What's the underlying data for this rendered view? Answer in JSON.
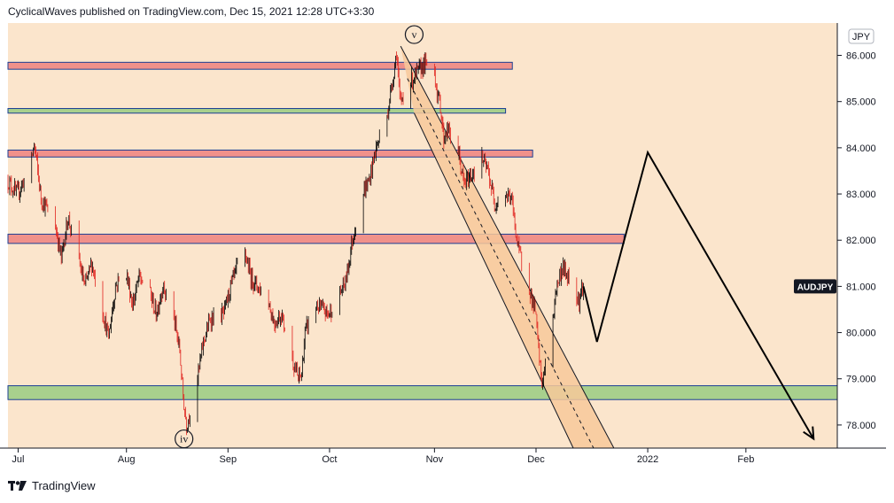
{
  "header": {
    "publisher": "CyclicalWaves",
    "publish_text": "published on TradingView.com, Dec 15, 2021 12:28 UTC+3:30"
  },
  "footer": {
    "brand": "TradingView"
  },
  "colors": {
    "background": "#fbe5cc",
    "candle_up": "#000000",
    "candle_down": "#e0231e",
    "resistance_fill": "#f0918a",
    "support_fill": "#a8d08d",
    "zone_border": "#1c3f94",
    "channel_fill": "#f7c99a",
    "projection_line": "#000000"
  },
  "chart_data": {
    "type": "candlestick",
    "symbol": "AUDJPY",
    "currency": "JPY",
    "last_price_label": "AUDJPY",
    "y_axis": {
      "min": 77.5,
      "max": 86.7,
      "ticks": [
        "78.000",
        "79.000",
        "80.000",
        "81.000",
        "82.000",
        "83.000",
        "84.000",
        "85.000",
        "86.000"
      ]
    },
    "x_axis": {
      "start": "2021-06-28",
      "end": "2022-02-28",
      "ticks": [
        {
          "label": "Jul",
          "date": "2021-07-01"
        },
        {
          "label": "Aug",
          "date": "2021-08-02"
        },
        {
          "label": "Sep",
          "date": "2021-09-01"
        },
        {
          "label": "Oct",
          "date": "2021-10-01"
        },
        {
          "label": "Nov",
          "date": "2021-11-01"
        },
        {
          "label": "Dec",
          "date": "2021-12-01"
        },
        {
          "label": "2022",
          "date": "2022-01-03"
        },
        {
          "label": "Feb",
          "date": "2022-02-01"
        }
      ]
    },
    "price_path": [
      [
        "2021-06-28",
        83.3
      ],
      [
        "2021-07-01",
        83.0
      ],
      [
        "2021-07-05",
        83.6
      ],
      [
        "2021-07-06",
        84.1
      ],
      [
        "2021-07-08",
        82.9
      ],
      [
        "2021-07-12",
        82.4
      ],
      [
        "2021-07-14",
        81.6
      ],
      [
        "2021-07-16",
        82.5
      ],
      [
        "2021-07-19",
        81.6
      ],
      [
        "2021-07-21",
        81.0
      ],
      [
        "2021-07-23",
        81.5
      ],
      [
        "2021-07-26",
        80.5
      ],
      [
        "2021-07-28",
        79.9
      ],
      [
        "2021-07-30",
        81.0
      ],
      [
        "2021-08-02",
        81.4
      ],
      [
        "2021-08-04",
        80.6
      ],
      [
        "2021-08-06",
        81.2
      ],
      [
        "2021-08-09",
        80.9
      ],
      [
        "2021-08-11",
        80.4
      ],
      [
        "2021-08-13",
        81.0
      ],
      [
        "2021-08-16",
        80.4
      ],
      [
        "2021-08-18",
        79.6
      ],
      [
        "2021-08-19",
        78.6
      ],
      [
        "2021-08-20",
        78.0
      ],
      [
        "2021-08-23",
        78.9
      ],
      [
        "2021-08-25",
        79.8
      ],
      [
        "2021-08-27",
        80.3
      ],
      [
        "2021-08-31",
        80.4
      ],
      [
        "2021-09-02",
        81.0
      ],
      [
        "2021-09-06",
        81.8
      ],
      [
        "2021-09-08",
        81.2
      ],
      [
        "2021-09-10",
        81.0
      ],
      [
        "2021-09-13",
        80.7
      ],
      [
        "2021-09-15",
        80.2
      ],
      [
        "2021-09-17",
        80.4
      ],
      [
        "2021-09-20",
        79.5
      ],
      [
        "2021-09-22",
        79.0
      ],
      [
        "2021-09-23",
        79.1
      ],
      [
        "2021-09-24",
        80.0
      ],
      [
        "2021-09-27",
        80.6
      ],
      [
        "2021-09-29",
        80.5
      ],
      [
        "2021-10-01",
        80.4
      ],
      [
        "2021-10-04",
        80.8
      ],
      [
        "2021-10-06",
        81.1
      ],
      [
        "2021-10-08",
        82.0
      ],
      [
        "2021-10-11",
        83.0
      ],
      [
        "2021-10-13",
        83.3
      ],
      [
        "2021-10-15",
        84.0
      ],
      [
        "2021-10-18",
        84.6
      ],
      [
        "2021-10-20",
        85.5
      ],
      [
        "2021-10-21",
        86.1
      ],
      [
        "2021-10-22",
        85.0
      ],
      [
        "2021-10-25",
        85.4
      ],
      [
        "2021-10-27",
        85.6
      ],
      [
        "2021-10-29",
        85.8
      ],
      [
        "2021-11-01",
        85.8
      ],
      [
        "2021-11-02",
        85.2
      ],
      [
        "2021-11-03",
        84.9
      ],
      [
        "2021-11-04",
        84.2
      ],
      [
        "2021-11-05",
        84.4
      ],
      [
        "2021-11-08",
        84.0
      ],
      [
        "2021-11-10",
        83.2
      ],
      [
        "2021-11-12",
        83.4
      ],
      [
        "2021-11-15",
        83.8
      ],
      [
        "2021-11-17",
        83.5
      ],
      [
        "2021-11-19",
        82.8
      ],
      [
        "2021-11-22",
        83.0
      ],
      [
        "2021-11-24",
        82.9
      ],
      [
        "2021-11-26",
        81.8
      ],
      [
        "2021-11-29",
        81.1
      ],
      [
        "2021-11-30",
        80.7
      ],
      [
        "2021-12-01",
        80.5
      ],
      [
        "2021-12-02",
        79.6
      ],
      [
        "2021-12-03",
        78.9
      ],
      [
        "2021-12-06",
        80.0
      ],
      [
        "2021-12-07",
        80.9
      ],
      [
        "2021-12-09",
        81.4
      ],
      [
        "2021-12-10",
        81.3
      ],
      [
        "2021-12-13",
        80.9
      ],
      [
        "2021-12-14",
        80.7
      ],
      [
        "2021-12-15",
        81.0
      ]
    ],
    "zones": [
      {
        "type": "resistance",
        "low": 85.7,
        "high": 85.85,
        "from": "2021-06-28",
        "to": "2021-11-24"
      },
      {
        "type": "support",
        "low": 84.75,
        "high": 84.85,
        "from": "2021-06-28",
        "to": "2021-11-22"
      },
      {
        "type": "resistance",
        "low": 83.8,
        "high": 83.95,
        "from": "2021-06-28",
        "to": "2021-11-30"
      },
      {
        "type": "resistance",
        "low": 81.93,
        "high": 82.13,
        "from": "2021-06-28",
        "to": "2021-12-27"
      },
      {
        "type": "support",
        "low": 78.55,
        "high": 78.85,
        "from": "2021-06-28",
        "to": "2022-02-28"
      }
    ],
    "channel": {
      "upper": [
        [
          "2021-10-22",
          86.2
        ],
        [
          "2021-12-24",
          77.5
        ]
      ],
      "lower": [
        [
          "2021-10-26",
          84.75
        ],
        [
          "2021-12-12",
          77.5
        ]
      ],
      "mid": [
        [
          "2021-10-24",
          85.5
        ],
        [
          "2021-12-18",
          77.5
        ]
      ]
    },
    "projection": [
      [
        "2021-12-15",
        81.0
      ],
      [
        "2021-12-19",
        79.8
      ],
      [
        "2022-01-03",
        83.9
      ],
      [
        "2022-02-21",
        77.7
      ]
    ],
    "wave_labels": [
      {
        "text": "v",
        "date": "2021-10-26",
        "price": 86.45
      },
      {
        "text": "iv",
        "date": "2021-08-19",
        "price": 77.7
      }
    ]
  }
}
